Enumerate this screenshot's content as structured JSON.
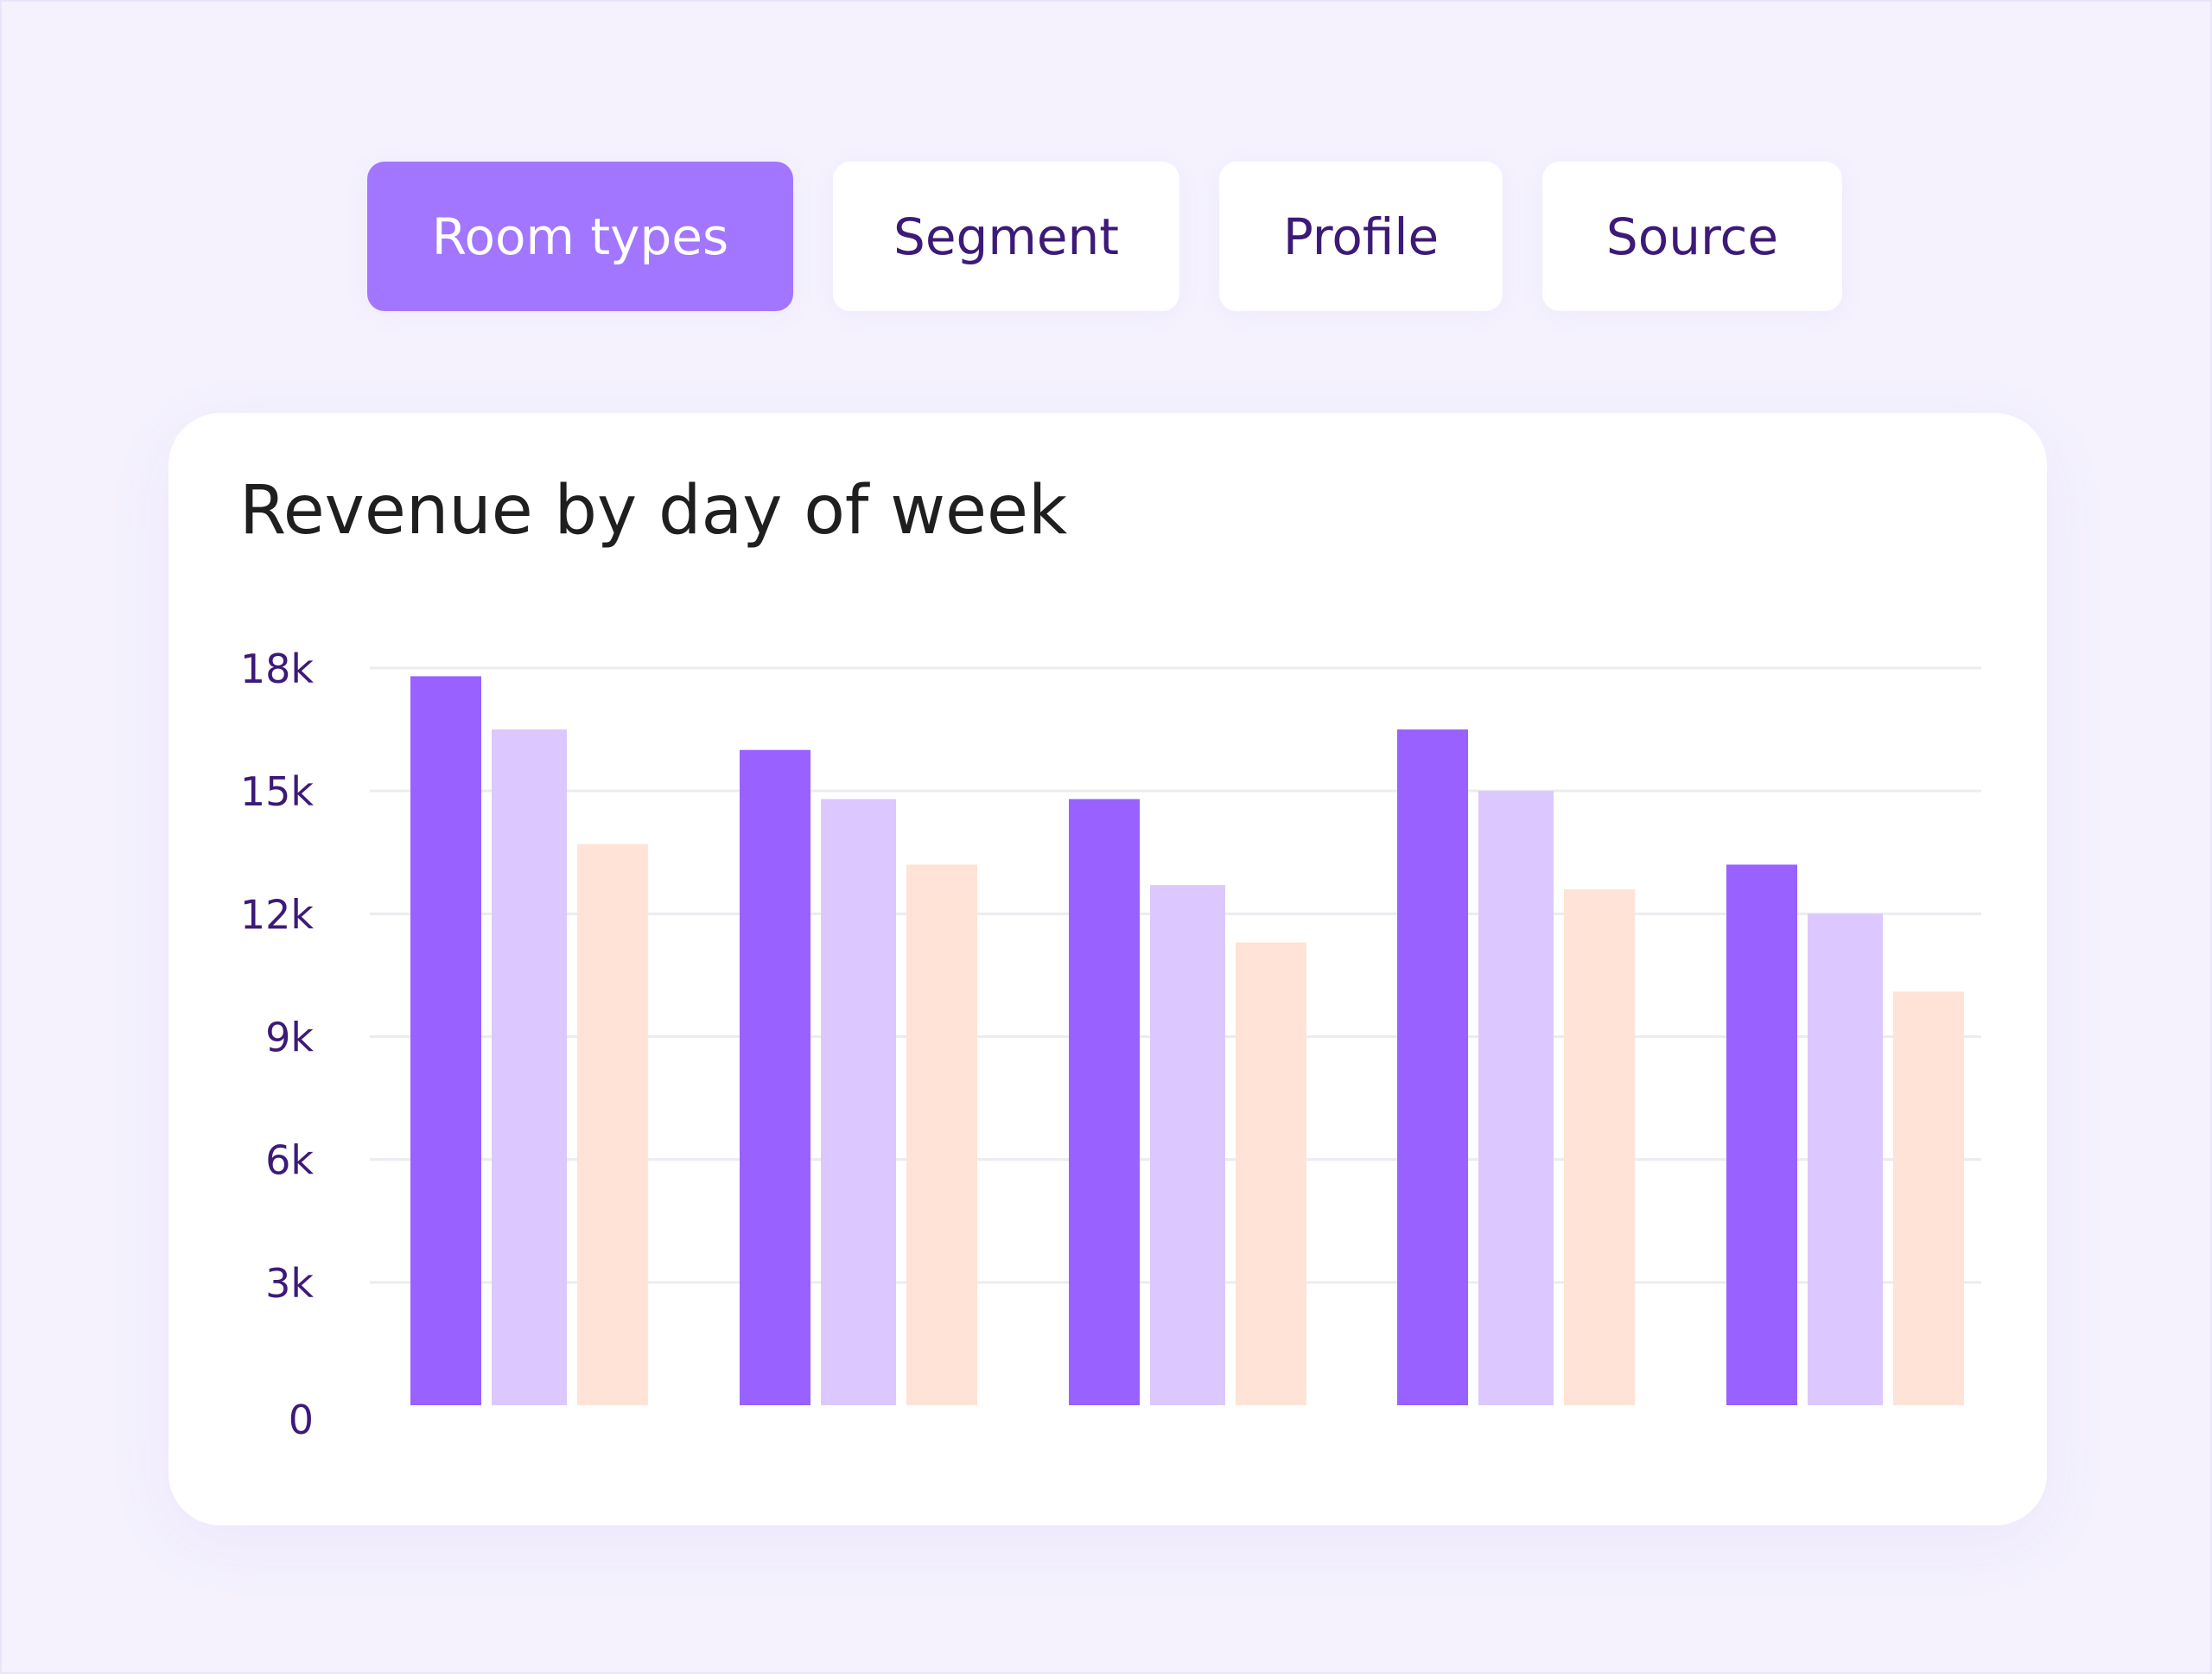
{
  "tabs": [
    {
      "label": "Room types",
      "active": true
    },
    {
      "label": "Segment",
      "active": false
    },
    {
      "label": "Profile",
      "active": false
    },
    {
      "label": "Source",
      "active": false
    }
  ],
  "card": {
    "title": "Revenue by day of week"
  },
  "colors": {
    "background": "#f5f2fe",
    "active_tab": "#a276ff",
    "tab_text": "#3d1a78",
    "series_1": "#9961ff",
    "series_2": "#dcc8ff",
    "series_3": "#ffe3d6",
    "tick_text": "#3d1a78",
    "grid": "#ececf0"
  },
  "chart_data": {
    "type": "bar",
    "title": "Revenue by day of week",
    "xlabel": "",
    "ylabel": "",
    "categories": [
      "",
      "",
      "",
      "",
      ""
    ],
    "series": [
      {
        "values": [
          17800,
          16000,
          14800,
          16500,
          13200
        ],
        "color": "#9961ff"
      },
      {
        "values": [
          16500,
          14800,
          12700,
          15000,
          12000
        ],
        "color": "#dcc8ff"
      },
      {
        "values": [
          13700,
          13200,
          11300,
          12600,
          10100
        ],
        "color": "#ffe3d6"
      }
    ],
    "yticks": [
      0,
      3000,
      6000,
      9000,
      12000,
      15000,
      18000
    ],
    "ytick_labels": [
      "0",
      "3k",
      "6k",
      "9k",
      "12k",
      "15k",
      "18k"
    ],
    "ylim": [
      0,
      18000
    ],
    "grid": true,
    "legend": "none"
  }
}
